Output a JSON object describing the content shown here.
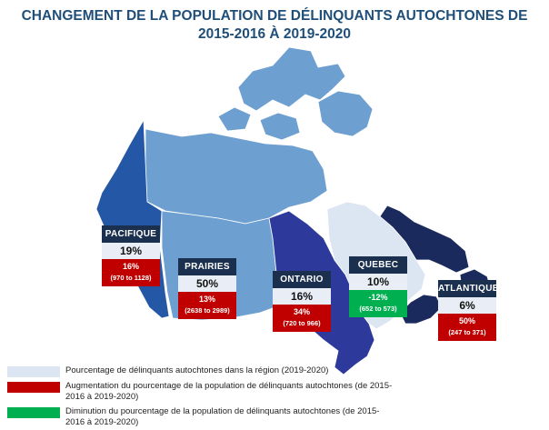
{
  "title": "CHANGEMENT DE LA POPULATION DE DÉLINQUANTS AUTOCHTONES DE 2015-2016 À 2019-2020",
  "colors": {
    "pacific": "#2458a6",
    "prairies": "#6d9fd1",
    "north": "#6d9fd1",
    "ontario": "#2d3a9c",
    "quebec": "#dbe6f2",
    "atlantic": "#1b2a5c",
    "legend_share": "#dbe6f2",
    "legend_increase": "#c00000",
    "legend_decrease": "#00b050"
  },
  "regions": [
    {
      "name": "PACIFIQUE",
      "share": "19%",
      "change": "16%",
      "range": "(970 to 1128)",
      "direction": "up"
    },
    {
      "name": "PRAIRIES",
      "share": "50%",
      "change": "13%",
      "range": "(2638 to 2989)",
      "direction": "up"
    },
    {
      "name": "ONTARIO",
      "share": "16%",
      "change": "34%",
      "range": "(720 to 966)",
      "direction": "up"
    },
    {
      "name": "QUEBEC",
      "share": "10%",
      "change": "-12%",
      "range": "(652 to 573)",
      "direction": "down"
    },
    {
      "name": "ATLANTIQUE",
      "share": "6%",
      "change": "50%",
      "range": "(247 to 371)",
      "direction": "up"
    }
  ],
  "legend": [
    {
      "label": "Pourcentage de délinquants autochtones dans la région (2019-2020)",
      "icon": "light-blue-swatch"
    },
    {
      "label": "Augmentation du pourcentage de la population de délinquants autochtones (de 2015-2016 à 2019-2020)",
      "icon": "red-swatch"
    },
    {
      "label": "Diminution du pourcentage de la population de délinquants autochtones (de 2015-2016 à 2019-2020)",
      "icon": "green-swatch"
    }
  ]
}
